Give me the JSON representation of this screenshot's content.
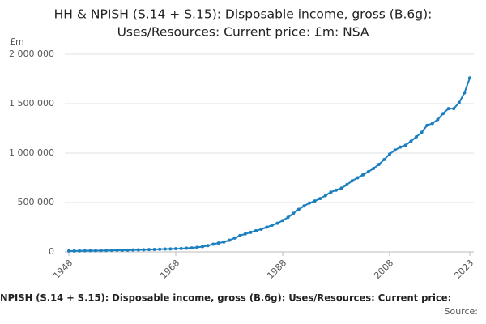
{
  "chart_data": {
    "type": "line",
    "title": "HH & NPISH (S.14 + S.15): Disposable income, gross (B.6g): Uses/Resources: Current price: £m: NSA",
    "y_unit_label": "£m",
    "footer_title": "NPISH (S.14 + S.15): Disposable income, gross (B.6g): Uses/Resources: Current price:",
    "footer_source": "Source:",
    "x": [
      1948,
      1949,
      1950,
      1951,
      1952,
      1953,
      1954,
      1955,
      1956,
      1957,
      1958,
      1959,
      1960,
      1961,
      1962,
      1963,
      1964,
      1965,
      1966,
      1967,
      1968,
      1969,
      1970,
      1971,
      1972,
      1973,
      1974,
      1975,
      1976,
      1977,
      1978,
      1979,
      1980,
      1981,
      1982,
      1983,
      1984,
      1985,
      1986,
      1987,
      1988,
      1989,
      1990,
      1991,
      1992,
      1993,
      1994,
      1995,
      1996,
      1997,
      1998,
      1999,
      2000,
      2001,
      2002,
      2003,
      2004,
      2005,
      2006,
      2007,
      2008,
      2009,
      2010,
      2011,
      2012,
      2013,
      2014,
      2015,
      2016,
      2017,
      2018,
      2019,
      2020,
      2021,
      2022,
      2023
    ],
    "series": [
      {
        "color": "#1a7fc1",
        "values": [
          9000,
          9500,
          10200,
          11000,
          11800,
          12600,
          13200,
          14200,
          15300,
          16100,
          16800,
          17800,
          19200,
          20800,
          21800,
          23100,
          24900,
          26600,
          28200,
          29500,
          31400,
          33300,
          36500,
          40200,
          46300,
          53600,
          63200,
          77800,
          89200,
          100500,
          117600,
          140000,
          165000,
          182000,
          198000,
          214000,
          230000,
          250000,
          270000,
          290000,
          318000,
          350000,
          390000,
          430000,
          465000,
          495000,
          515000,
          540000,
          570000,
          605000,
          625000,
          645000,
          680000,
          720000,
          750000,
          780000,
          810000,
          845000,
          885000,
          935000,
          990000,
          1030000,
          1060000,
          1080000,
          1120000,
          1165000,
          1210000,
          1280000,
          1300000,
          1340000,
          1400000,
          1450000,
          1450000,
          1510000,
          1610000,
          1760000
        ]
      }
    ],
    "xlim": [
      1948,
      2023
    ],
    "xticks": [
      1948,
      1968,
      1988,
      2008,
      2023
    ],
    "ylim": [
      0,
      2000000
    ],
    "yticks": [
      0,
      {
        "value": 500000,
        "label": "500 000"
      },
      {
        "value": 1000000,
        "label": "1 000 000"
      },
      {
        "value": 1500000,
        "label": "1 500 000"
      },
      {
        "value": 2000000,
        "label": "2 000 000"
      }
    ],
    "grid": true
  }
}
